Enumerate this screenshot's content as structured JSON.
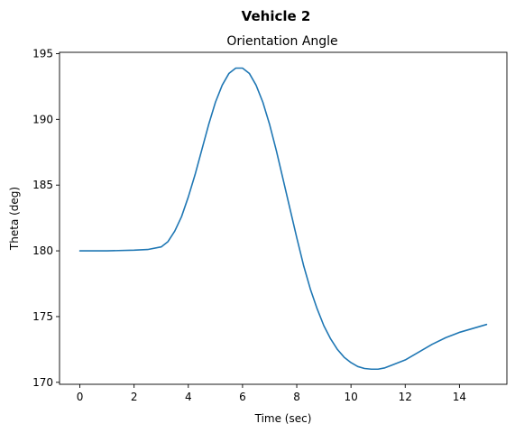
{
  "chart_data": {
    "type": "line",
    "suptitle": "Vehicle 2",
    "title": "Orientation Angle",
    "xlabel": "Time (sec)",
    "ylabel": "Theta (deg)",
    "xlim": [
      -0.75,
      15.75
    ],
    "ylim": [
      169.85,
      195.1
    ],
    "xticks": [
      0,
      2,
      4,
      6,
      8,
      10,
      12,
      14
    ],
    "yticks": [
      170,
      175,
      180,
      185,
      190,
      195
    ],
    "grid": false,
    "line_color": "#1f77b4",
    "series": [
      {
        "x": [
          0,
          1,
          2,
          2.5,
          3,
          3.25,
          3.5,
          3.75,
          4,
          4.25,
          4.5,
          4.75,
          5,
          5.25,
          5.5,
          5.75,
          6,
          6.25,
          6.5,
          6.75,
          7,
          7.25,
          7.5,
          7.75,
          8,
          8.25,
          8.5,
          8.75,
          9,
          9.25,
          9.5,
          9.75,
          10,
          10.25,
          10.5,
          10.75,
          11,
          11.25,
          11.5,
          12,
          12.5,
          13,
          13.5,
          14,
          14.5,
          15
        ],
        "y": [
          180,
          180,
          180.05,
          180.1,
          180.3,
          180.7,
          181.5,
          182.6,
          184.1,
          185.8,
          187.7,
          189.6,
          191.3,
          192.6,
          193.5,
          193.9,
          193.9,
          193.5,
          192.6,
          191.3,
          189.6,
          187.6,
          185.4,
          183.2,
          181,
          178.9,
          177.1,
          175.6,
          174.3,
          173.3,
          172.5,
          171.9,
          171.5,
          171.2,
          171.05,
          171,
          171,
          171.1,
          171.3,
          171.7,
          172.3,
          172.9,
          173.4,
          173.8,
          174.1,
          174.4
        ]
      }
    ]
  }
}
